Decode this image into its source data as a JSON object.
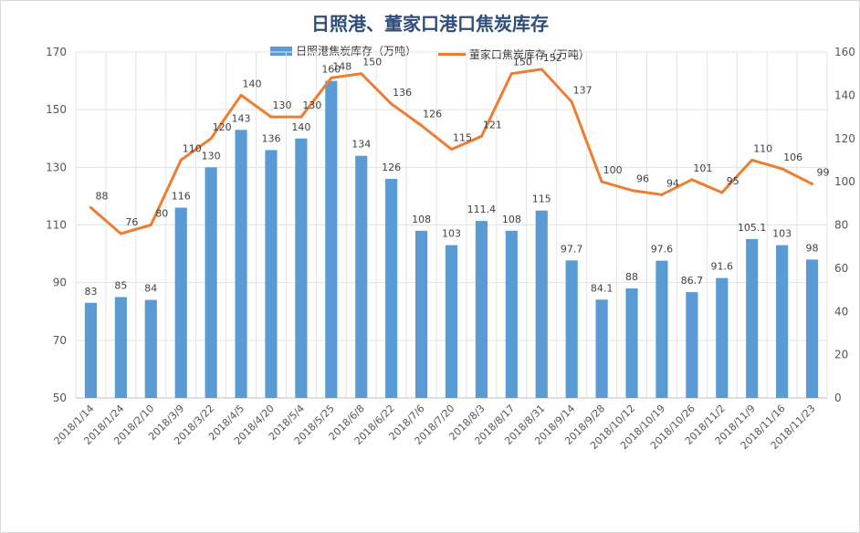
{
  "chart_data": {
    "type": "bar",
    "title": "日照港、董家口港口焦炭库存",
    "categories": [
      "2018/1/14",
      "2018/1/24",
      "2018/2/10",
      "2018/3/9",
      "2018/3/22",
      "2018/4/5",
      "2018/4/20",
      "2018/5/4",
      "2018/5/25",
      "2018/6/8",
      "2018/6/22",
      "2018/7/6",
      "2018/7/20",
      "2018/8/3",
      "2018/8/17",
      "2018/8/31",
      "2018/9/14",
      "2018/9/28",
      "2018/10/12",
      "2018/10/19",
      "2018/10/26",
      "2018/11/2",
      "2018/11/9",
      "2018/11/16",
      "2018/11/23"
    ],
    "series": [
      {
        "name": "日照港焦炭库存（万吨）",
        "type": "bar",
        "axis": "left",
        "color": "#5b9bd5",
        "values": [
          83,
          85,
          84,
          116,
          130,
          143,
          136,
          140,
          160,
          134,
          126,
          108,
          103,
          111.4,
          108,
          115,
          97.7,
          84.1,
          88,
          97.6,
          86.7,
          91.6,
          105.1,
          103,
          98
        ],
        "labels": [
          "83",
          "85",
          "84",
          "116",
          "130",
          "143",
          "136",
          "140",
          "160",
          "134",
          "126",
          "108",
          "103",
          "111.4",
          "108",
          "115",
          "97.7",
          "84.1",
          "88",
          "97.6",
          "86.7",
          "91.6",
          "105.1",
          "103",
          "98"
        ]
      },
      {
        "name": "董家口焦炭库存（万吨）",
        "type": "line",
        "axis": "right",
        "color": "#ed7d31",
        "values": [
          88,
          76,
          80,
          110,
          120,
          140,
          130,
          130,
          148,
          150,
          136,
          126,
          115,
          121,
          150,
          152,
          137,
          100,
          96,
          94,
          101,
          95,
          110,
          106,
          99
        ],
        "labels": [
          "88",
          "76",
          "80",
          "110",
          "120",
          "140",
          "130",
          "130",
          "148",
          "150",
          "136",
          "126",
          "115",
          "121",
          "150",
          "152",
          "137",
          "100",
          "96",
          "94",
          "101",
          "95",
          "110",
          "106",
          "99"
        ]
      }
    ],
    "y_left": {
      "min": 50,
      "max": 170,
      "ticks": [
        "50",
        "70",
        "90",
        "110",
        "130",
        "150",
        "170"
      ]
    },
    "y_right": {
      "min": 0,
      "max": 160,
      "ticks": [
        "0",
        "20",
        "40",
        "60",
        "80",
        "100",
        "120",
        "140",
        "160"
      ]
    },
    "grid": true,
    "legend_position": "top-center"
  }
}
